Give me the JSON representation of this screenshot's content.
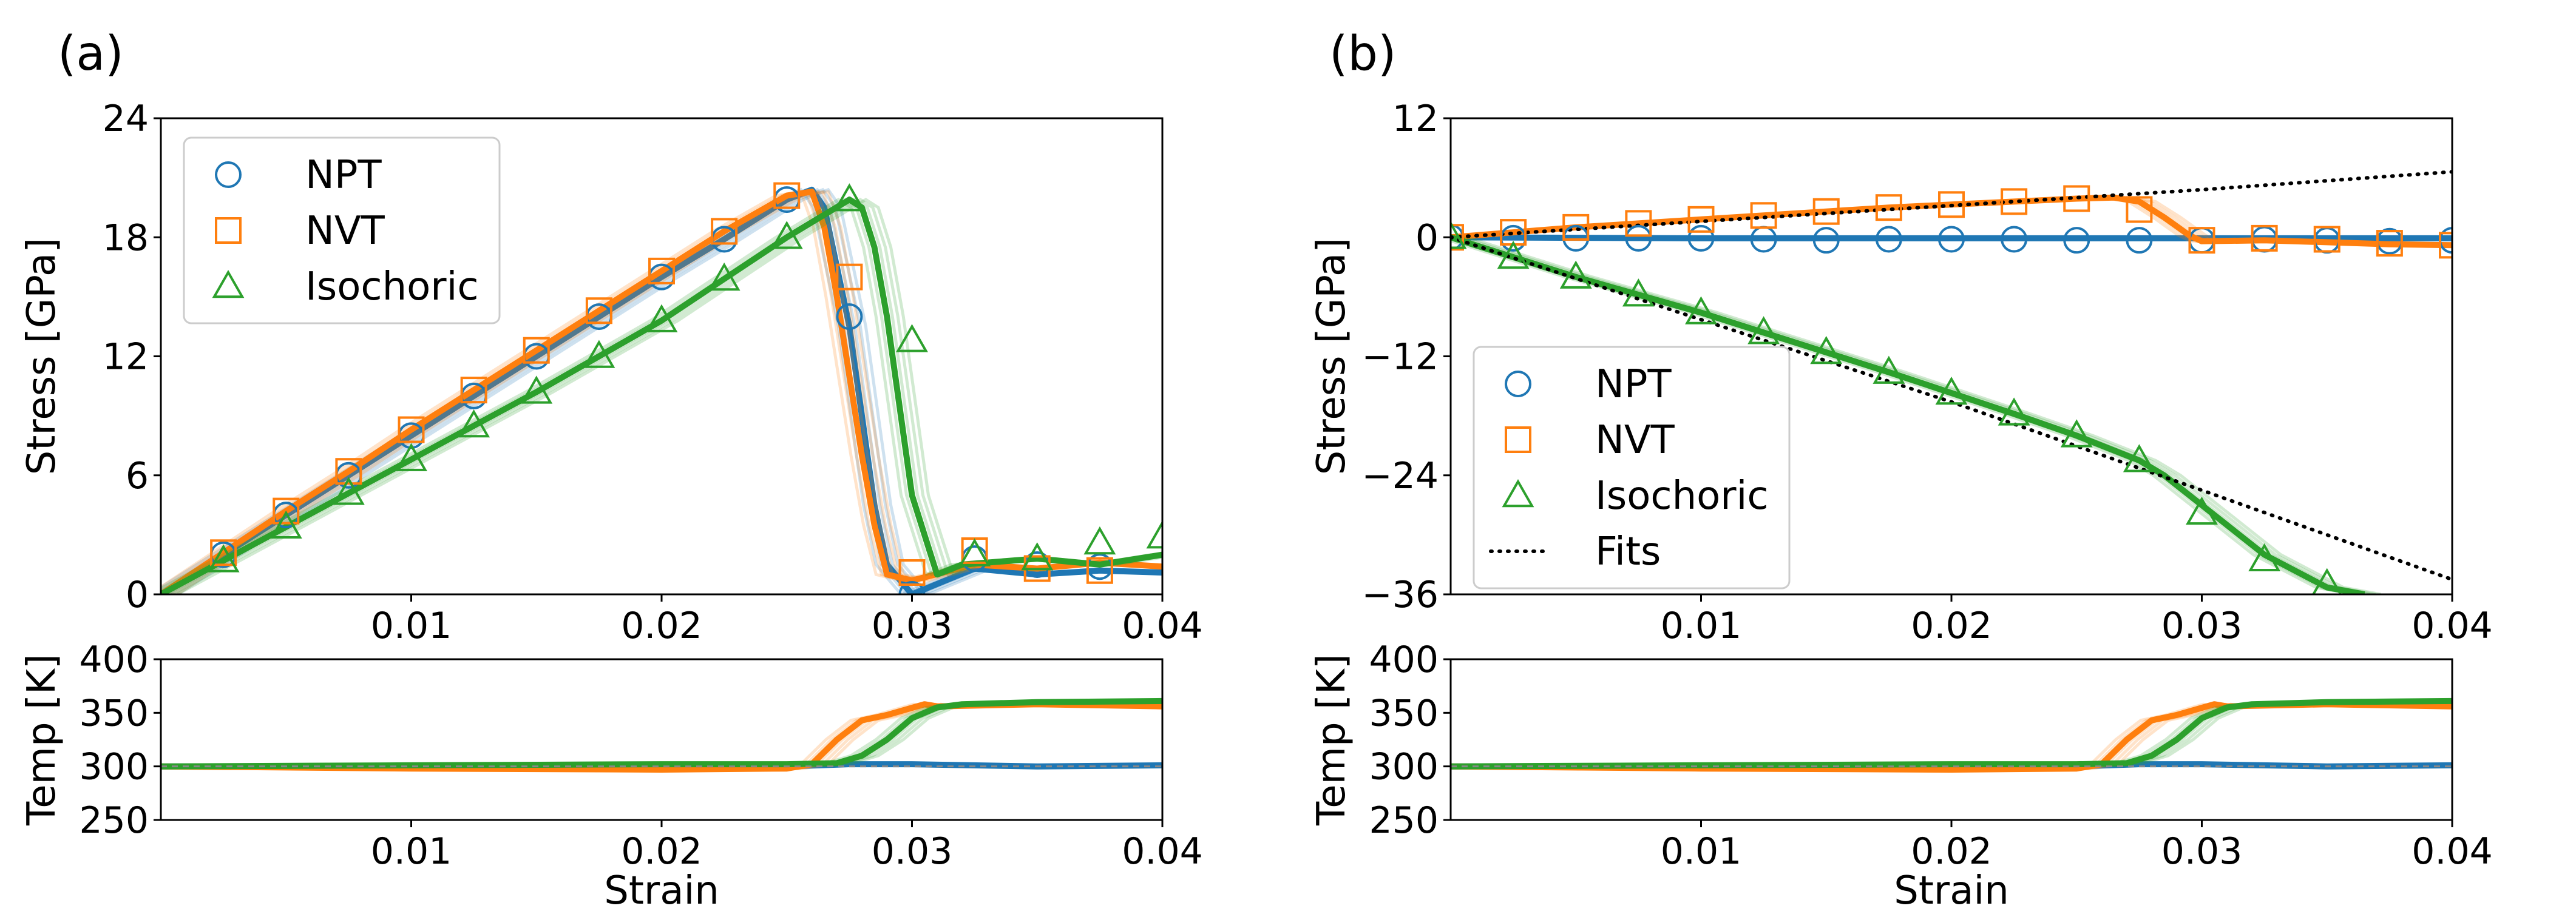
{
  "colors": {
    "NPT": "#1f77b4",
    "NVT": "#ff7f0e",
    "Isochoric": "#2ca02c",
    "fits": "#000000"
  },
  "chart_data": [
    {
      "panel_label": "(a)",
      "type": "line",
      "xlabel": "",
      "ylabel": "Stress [GPa]",
      "xlim": [
        0,
        0.04
      ],
      "ylim": [
        0,
        24
      ],
      "xticks": [
        0.01,
        0.02,
        0.03,
        0.04
      ],
      "xtick_labels": [
        "0.01",
        "0.02",
        "0.03",
        "0.04"
      ],
      "yticks": [
        0,
        6,
        12,
        18,
        24
      ],
      "ytick_labels": [
        "0",
        "6",
        "12",
        "18",
        "24"
      ],
      "legend": {
        "position": "top-left",
        "entries": [
          "NPT",
          "NVT",
          "Isochoric"
        ]
      },
      "series": [
        {
          "name": "NPT",
          "marker": "circle",
          "x": [
            0,
            0.0025,
            0.005,
            0.0075,
            0.01,
            0.0125,
            0.015,
            0.0175,
            0.02,
            0.0225,
            0.025,
            0.026,
            0.0265,
            0.027,
            0.0275,
            0.028,
            0.0285,
            0.029,
            0.03,
            0.0325,
            0.035,
            0.0375,
            0.04
          ],
          "y": [
            0,
            2.0,
            4.0,
            6.0,
            8.0,
            10.0,
            12.0,
            14.0,
            16.0,
            17.9,
            19.9,
            20.4,
            19.5,
            16.5,
            13.5,
            9.0,
            4.5,
            1.5,
            0.0,
            1.3,
            1.0,
            1.2,
            1.1
          ],
          "markers_x": [
            0.0025,
            0.005,
            0.0075,
            0.01,
            0.0125,
            0.015,
            0.0175,
            0.02,
            0.0225,
            0.025,
            0.0275,
            0.03,
            0.0325,
            0.035,
            0.0375
          ],
          "markers_y": [
            2.0,
            4.0,
            6.0,
            8.0,
            10.0,
            12.0,
            14.0,
            16.0,
            17.9,
            19.9,
            14.0,
            0.0,
            1.8,
            1.5,
            1.4
          ]
        },
        {
          "name": "NVT",
          "marker": "square",
          "x": [
            0,
            0.0025,
            0.005,
            0.0075,
            0.01,
            0.0125,
            0.015,
            0.0175,
            0.02,
            0.0225,
            0.025,
            0.026,
            0.0265,
            0.027,
            0.0275,
            0.028,
            0.0285,
            0.029,
            0.03,
            0.0325,
            0.035,
            0.0375,
            0.04
          ],
          "y": [
            0,
            2.1,
            4.2,
            6.2,
            8.3,
            10.3,
            12.3,
            14.3,
            16.3,
            18.3,
            20.1,
            20.3,
            18.5,
            15.0,
            11.0,
            7.0,
            3.5,
            1.0,
            0.7,
            1.5,
            1.3,
            1.6,
            1.4
          ],
          "markers_x": [
            0.0025,
            0.005,
            0.0075,
            0.01,
            0.0125,
            0.015,
            0.0175,
            0.02,
            0.0225,
            0.025,
            0.0275,
            0.03,
            0.0325,
            0.035,
            0.0375
          ],
          "markers_y": [
            2.1,
            4.2,
            6.2,
            8.3,
            10.3,
            12.3,
            14.3,
            16.3,
            18.3,
            20.1,
            16.0,
            1.1,
            2.2,
            1.3,
            1.2
          ]
        },
        {
          "name": "Isochoric",
          "marker": "triangle",
          "x": [
            0,
            0.0025,
            0.005,
            0.0075,
            0.01,
            0.0125,
            0.015,
            0.0175,
            0.02,
            0.0225,
            0.025,
            0.0275,
            0.028,
            0.0285,
            0.029,
            0.0295,
            0.03,
            0.031,
            0.032,
            0.035,
            0.0375,
            0.04
          ],
          "y": [
            0,
            1.7,
            3.4,
            5.1,
            6.8,
            8.5,
            10.2,
            12.0,
            13.8,
            15.9,
            18.0,
            19.9,
            19.5,
            17.5,
            14.0,
            9.5,
            5.0,
            1.0,
            1.5,
            1.8,
            1.5,
            2.0
          ],
          "markers_x": [
            0.0025,
            0.005,
            0.0075,
            0.01,
            0.0125,
            0.015,
            0.0175,
            0.02,
            0.0225,
            0.025,
            0.0275,
            0.03,
            0.0325,
            0.035,
            0.0375,
            0.04
          ],
          "markers_y": [
            1.7,
            3.4,
            5.1,
            6.8,
            8.5,
            10.2,
            12.0,
            13.8,
            15.9,
            18.0,
            19.9,
            12.8,
            2.0,
            1.8,
            2.6,
            2.9
          ]
        }
      ]
    },
    {
      "panel_label": "",
      "type": "line",
      "xlabel": "Strain",
      "ylabel": "Temp [K]",
      "xlim": [
        0,
        0.04
      ],
      "ylim": [
        250,
        400
      ],
      "xticks": [
        0.01,
        0.02,
        0.03,
        0.04
      ],
      "xtick_labels": [
        "0.01",
        "0.02",
        "0.03",
        "0.04"
      ],
      "yticks": [
        250,
        300,
        350,
        400
      ],
      "ytick_labels": [
        "250",
        "300",
        "350",
        "400"
      ],
      "series": [
        {
          "name": "NPT",
          "x": [
            0,
            0.01,
            0.02,
            0.025,
            0.0275,
            0.03,
            0.035,
            0.04
          ],
          "y": [
            300,
            300,
            300,
            300,
            302,
            302,
            300,
            301
          ]
        },
        {
          "name": "NVT",
          "x": [
            0,
            0.01,
            0.02,
            0.025,
            0.026,
            0.027,
            0.028,
            0.029,
            0.0305,
            0.031,
            0.035,
            0.04
          ],
          "y": [
            300,
            298,
            297,
            298,
            302,
            325,
            343,
            348,
            358,
            356,
            358,
            356
          ]
        },
        {
          "name": "Isochoric",
          "x": [
            0,
            0.01,
            0.02,
            0.025,
            0.027,
            0.028,
            0.029,
            0.03,
            0.031,
            0.032,
            0.035,
            0.04
          ],
          "y": [
            300,
            301,
            302,
            302,
            303,
            310,
            325,
            345,
            355,
            358,
            360,
            361
          ]
        }
      ]
    },
    {
      "panel_label": "(b)",
      "type": "line",
      "xlabel": "",
      "ylabel": "Stress [GPa]",
      "xlim": [
        0,
        0.04
      ],
      "ylim": [
        -36,
        12
      ],
      "xticks": [
        0.01,
        0.02,
        0.03,
        0.04
      ],
      "xtick_labels": [
        "0.01",
        "0.02",
        "0.03",
        "0.04"
      ],
      "yticks": [
        -36,
        -24,
        -12,
        0,
        12
      ],
      "ytick_labels": [
        "−36",
        "−24",
        "−12",
        "0",
        "12"
      ],
      "legend": {
        "position": "bottom-left",
        "entries": [
          "NPT",
          "NVT",
          "Isochoric",
          "Fits"
        ]
      },
      "series": [
        {
          "name": "NPT",
          "marker": "circle",
          "x": [
            0,
            0.01,
            0.02,
            0.03,
            0.04
          ],
          "y": [
            0,
            -0.1,
            -0.1,
            -0.1,
            -0.1
          ],
          "markers_x": [
            0,
            0.0025,
            0.005,
            0.0075,
            0.01,
            0.0125,
            0.015,
            0.0175,
            0.02,
            0.0225,
            0.025,
            0.0275,
            0.03,
            0.0325,
            0.035,
            0.0375,
            0.04
          ],
          "markers_y": [
            0,
            -0.1,
            -0.1,
            -0.1,
            -0.1,
            -0.2,
            -0.3,
            -0.2,
            -0.2,
            -0.2,
            -0.3,
            -0.3,
            -0.3,
            -0.2,
            -0.3,
            -0.4,
            -0.3
          ]
        },
        {
          "name": "NVT",
          "marker": "square",
          "x": [
            0,
            0.0025,
            0.005,
            0.0075,
            0.01,
            0.0125,
            0.015,
            0.0175,
            0.02,
            0.0225,
            0.025,
            0.0265,
            0.0275,
            0.0285,
            0.0295,
            0.03,
            0.0325,
            0.035,
            0.0375,
            0.04
          ],
          "y": [
            0,
            0.5,
            1.0,
            1.4,
            1.8,
            2.2,
            2.6,
            3.0,
            3.3,
            3.6,
            3.9,
            4.0,
            3.6,
            2.0,
            0.2,
            -0.4,
            -0.3,
            -0.5,
            -0.7,
            -0.8
          ],
          "markers_x": [
            0,
            0.0025,
            0.005,
            0.0075,
            0.01,
            0.0125,
            0.015,
            0.0175,
            0.02,
            0.0225,
            0.025,
            0.0275,
            0.03,
            0.0325,
            0.035,
            0.0375,
            0.04
          ],
          "markers_y": [
            0,
            0.5,
            1.0,
            1.4,
            1.8,
            2.2,
            2.6,
            3.0,
            3.3,
            3.6,
            3.9,
            2.8,
            -0.3,
            -0.1,
            -0.2,
            -0.6,
            -0.8
          ]
        },
        {
          "name": "Isochoric",
          "marker": "triangle",
          "x": [
            0,
            0.0025,
            0.005,
            0.0075,
            0.01,
            0.0125,
            0.015,
            0.0175,
            0.02,
            0.0225,
            0.025,
            0.0275,
            0.0285,
            0.03,
            0.0325,
            0.035,
            0.0365
          ],
          "y": [
            0,
            -2.0,
            -4.0,
            -5.8,
            -7.6,
            -9.6,
            -11.6,
            -13.6,
            -15.7,
            -17.8,
            -20.0,
            -22.5,
            -24.0,
            -27.0,
            -32.0,
            -35.3,
            -36.0
          ],
          "markers_x": [
            0,
            0.0025,
            0.005,
            0.0075,
            0.01,
            0.0125,
            0.015,
            0.0175,
            0.02,
            0.0225,
            0.025,
            0.0275,
            0.03,
            0.0325,
            0.035
          ],
          "markers_y": [
            0,
            -2.0,
            -4.0,
            -5.8,
            -7.6,
            -9.6,
            -11.6,
            -13.6,
            -15.7,
            -17.8,
            -20.0,
            -22.5,
            -27.8,
            -32.5,
            -35.0
          ]
        },
        {
          "name": "Fits",
          "style": "dotted",
          "x": [
            0,
            0.01,
            0.02,
            0.03,
            0.04
          ],
          "y": [
            0,
            1.6,
            3.2,
            4.8,
            6.6
          ]
        },
        {
          "name": "Fits",
          "style": "dotted",
          "x": [
            0,
            0.01,
            0.02,
            0.03,
            0.04
          ],
          "y": [
            0,
            -8.3,
            -16.6,
            -25.5,
            -34.5
          ]
        }
      ]
    },
    {
      "panel_label": "",
      "type": "line",
      "xlabel": "Strain",
      "ylabel": "Temp [K]",
      "xlim": [
        0,
        0.04
      ],
      "ylim": [
        250,
        400
      ],
      "xticks": [
        0.01,
        0.02,
        0.03,
        0.04
      ],
      "xtick_labels": [
        "0.01",
        "0.02",
        "0.03",
        "0.04"
      ],
      "yticks": [
        250,
        300,
        350,
        400
      ],
      "ytick_labels": [
        "250",
        "300",
        "350",
        "400"
      ],
      "series": [
        {
          "name": "NPT",
          "x": [
            0,
            0.01,
            0.02,
            0.025,
            0.0275,
            0.03,
            0.035,
            0.04
          ],
          "y": [
            300,
            300,
            300,
            300,
            302,
            302,
            300,
            301
          ]
        },
        {
          "name": "NVT",
          "x": [
            0,
            0.01,
            0.02,
            0.025,
            0.026,
            0.027,
            0.028,
            0.029,
            0.0305,
            0.031,
            0.035,
            0.04
          ],
          "y": [
            300,
            298,
            297,
            298,
            302,
            325,
            343,
            348,
            358,
            356,
            358,
            356
          ]
        },
        {
          "name": "Isochoric",
          "x": [
            0,
            0.01,
            0.02,
            0.025,
            0.027,
            0.028,
            0.029,
            0.03,
            0.031,
            0.032,
            0.035,
            0.04
          ],
          "y": [
            300,
            301,
            302,
            302,
            303,
            310,
            325,
            345,
            355,
            358,
            360,
            361
          ]
        }
      ]
    }
  ]
}
